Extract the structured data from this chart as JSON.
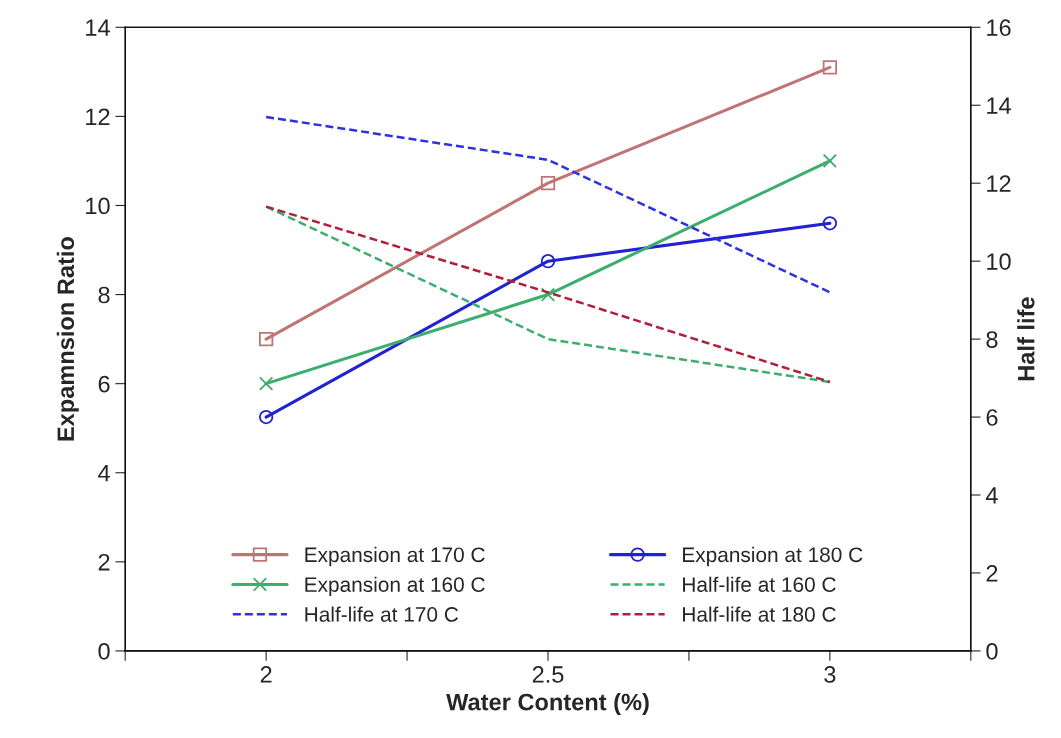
{
  "chart_data": {
    "type": "line",
    "xlabel": "Water Content (%)",
    "ylabel": "Expamnsion Ratio",
    "y2label": "Half life",
    "x": [
      2,
      2.5,
      3
    ],
    "xlim": [
      1.75,
      3.25
    ],
    "xticks": [
      {
        "value": 1.75,
        "label": null
      },
      2,
      {
        "value": 2.25,
        "label": null
      },
      2.5,
      {
        "value": 2.75,
        "label": null
      },
      3,
      {
        "value": 3.25,
        "label": null
      }
    ],
    "ylim": [
      0,
      14
    ],
    "yticks": [
      0,
      2,
      4,
      6,
      8,
      10,
      12,
      14
    ],
    "y2lim": [
      0,
      16
    ],
    "y2ticks": [
      0,
      2,
      4,
      6,
      8,
      10,
      12,
      14,
      16
    ],
    "grid": false,
    "legend": "bottom",
    "series": [
      {
        "name": "Expansion at 170 C",
        "color": "#c07474",
        "values": [
          7.0,
          10.5,
          13.1
        ],
        "marker": "square",
        "line_style": "solid"
      },
      {
        "name": "Expansion at 180 C",
        "color": "#2222d0",
        "values": [
          5.25,
          8.75,
          9.6
        ],
        "marker": "circle",
        "line_style": "solid"
      },
      {
        "name": "Expansion at 160 C",
        "color": "#3cae6e",
        "values": [
          6.0,
          8.0,
          11.0
        ],
        "marker": "cross",
        "line_style": "solid"
      },
      {
        "name": "Half-life at 160 C",
        "color": "#3cae6e",
        "values": [
          11.4,
          8.0,
          6.9
        ],
        "marker": "none",
        "line_style": "dashed",
        "axis": "y2"
      },
      {
        "name": "Half-life at 170 C",
        "color": "#3030e0",
        "values": [
          13.7,
          12.6,
          9.2
        ],
        "marker": "none",
        "line_style": "dashed",
        "axis": "y2"
      },
      {
        "name": "Half-life at 180 C",
        "color": "#b0203a",
        "values": [
          11.4,
          9.2,
          6.9
        ],
        "marker": "none",
        "line_style": "dashed",
        "axis": "y2"
      }
    ]
  }
}
